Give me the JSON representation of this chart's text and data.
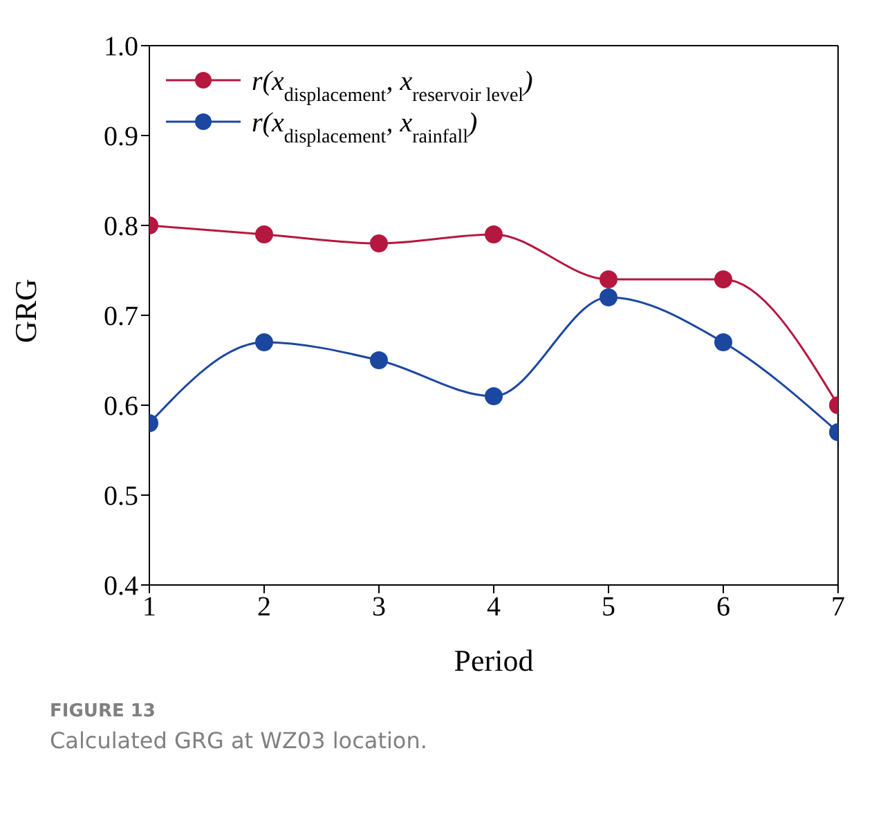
{
  "chart_data": {
    "type": "line",
    "x": [
      1,
      2,
      3,
      4,
      5,
      6,
      7
    ],
    "xlabel": "Period",
    "ylabel": "GRG",
    "xlim": [
      1,
      7
    ],
    "xticks": [
      1,
      2,
      3,
      4,
      5,
      6,
      7
    ],
    "ylim": [
      0.4,
      1.0
    ],
    "yticks": [
      0.4,
      0.5,
      0.6,
      0.7,
      0.8,
      0.9,
      {
        "value": 1.0,
        "label": "1.0"
      }
    ],
    "series": [
      {
        "name": "r(x$_{displacement}$, x$_{reservoir level}$)",
        "color": "#b5173f",
        "values": [
          0.8,
          0.79,
          0.78,
          0.79,
          0.74,
          0.74,
          0.6
        ]
      },
      {
        "name": "r(x$_{displacement}$, x$_{rainfall}$)",
        "color": "#1c47a0",
        "values": [
          0.58,
          0.67,
          0.65,
          0.61,
          0.72,
          0.67,
          0.57
        ]
      }
    ],
    "marker": "circle",
    "line_style": "solid",
    "legend": "top left",
    "grid": false,
    "annotations": [
      "FIGURE 13",
      "Calculated GRG at WZ03 location."
    ]
  }
}
